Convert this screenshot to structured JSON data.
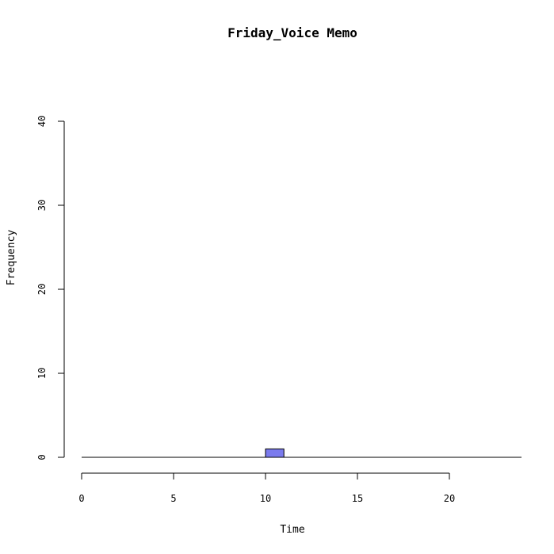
{
  "chart_data": {
    "type": "bar",
    "title": "Friday_Voice Memo",
    "xlabel": "Time",
    "ylabel": "Frequency",
    "x_ticks": [
      0,
      5,
      10,
      15,
      20
    ],
    "y_ticks": [
      0,
      10,
      20,
      30,
      40
    ],
    "xlim": [
      0,
      24
    ],
    "ylim": [
      0,
      40
    ],
    "bin_width": 1,
    "bins": [
      {
        "start": 10,
        "end": 11,
        "count": 1
      }
    ],
    "bar_color": "#7B7BEE"
  }
}
